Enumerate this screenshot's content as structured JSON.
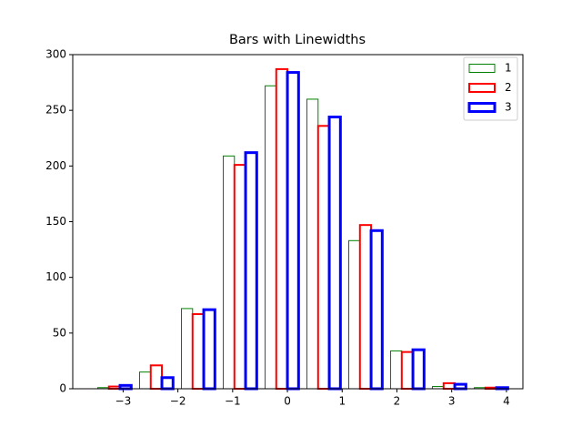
{
  "chart_data": {
    "type": "histogram",
    "title": "Bars with Linewidths",
    "bins": [
      -3.54,
      -2.776,
      -2.012,
      -1.248,
      -0.484,
      0.28,
      1.044,
      1.808,
      2.572,
      3.336,
      4.1
    ],
    "series": [
      {
        "name": "1",
        "color": "#008000",
        "linewidth": 1,
        "values": [
          1,
          15,
          72,
          209,
          272,
          260,
          133,
          34,
          2,
          1
        ]
      },
      {
        "name": "2",
        "color": "#ff0000",
        "linewidth": 2,
        "values": [
          2,
          21,
          67,
          201,
          287,
          236,
          147,
          33,
          5,
          1
        ]
      },
      {
        "name": "3",
        "color": "#0000ff",
        "linewidth": 3,
        "values": [
          3,
          10,
          71,
          212,
          284,
          244,
          142,
          35,
          4,
          1
        ]
      }
    ],
    "xlim": [
      -3.92,
      4.3
    ],
    "xticks": [
      {
        "value": -3,
        "label": "−3"
      },
      {
        "value": -2,
        "label": "−2"
      },
      {
        "value": -1,
        "label": "−1"
      },
      0,
      1,
      2,
      3,
      4
    ],
    "ylim": [
      0,
      300
    ],
    "yticks": [
      0,
      50,
      100,
      150,
      200,
      250,
      300
    ],
    "legend": "upper right"
  }
}
